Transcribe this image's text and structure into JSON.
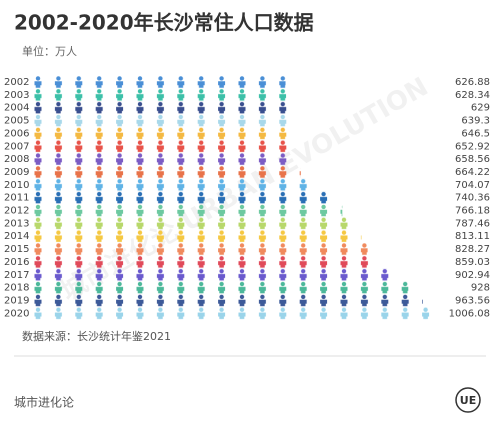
{
  "chart_data": {
    "type": "pictograph",
    "title": "2002-2020年长沙常住人口数据",
    "subtitle": "单位：万人",
    "source": "数据来源：长沙统计年鉴2021",
    "brand": "城市进化论",
    "logo": "UE",
    "watermark": "城市进化论 URBAN EVOLUTION",
    "categories": [
      "2002",
      "2003",
      "2004",
      "2005",
      "2006",
      "2007",
      "2008",
      "2009",
      "2010",
      "2011",
      "2012",
      "2013",
      "2014",
      "2015",
      "2016",
      "2017",
      "2018",
      "2019",
      "2020"
    ],
    "values": [
      626.88,
      628.34,
      629,
      639.3,
      646.5,
      652.92,
      658.56,
      664.22,
      704.07,
      740.36,
      766.18,
      787.46,
      813.11,
      828.27,
      859.03,
      902.94,
      928,
      963.56,
      1006.08
    ],
    "colors": [
      "#4a8fd6",
      "#3cc0a8",
      "#3a4f8f",
      "#a8d8ea",
      "#f4b942",
      "#e8534a",
      "#7b5cc4",
      "#e8734a",
      "#5fb3e6",
      "#2a6fb5",
      "#6dc9a0",
      "#b8d86b",
      "#f5c842",
      "#f08a5d",
      "#e04a5a",
      "#6a5acd",
      "#4cb89a",
      "#3d5a99",
      "#9ad4ea"
    ],
    "xlim": [
      0,
      1050
    ]
  }
}
